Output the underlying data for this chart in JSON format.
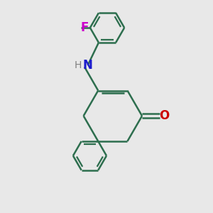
{
  "background_color": "#e8e8e8",
  "bond_color": "#2d6e4e",
  "bond_width": 1.8,
  "N_color": "#1a1acc",
  "O_color": "#cc0000",
  "F_color": "#cc00cc",
  "H_color": "#808080",
  "figsize": [
    3.0,
    3.0
  ],
  "dpi": 100,
  "xlim": [
    0,
    10
  ],
  "ylim": [
    0,
    10
  ]
}
